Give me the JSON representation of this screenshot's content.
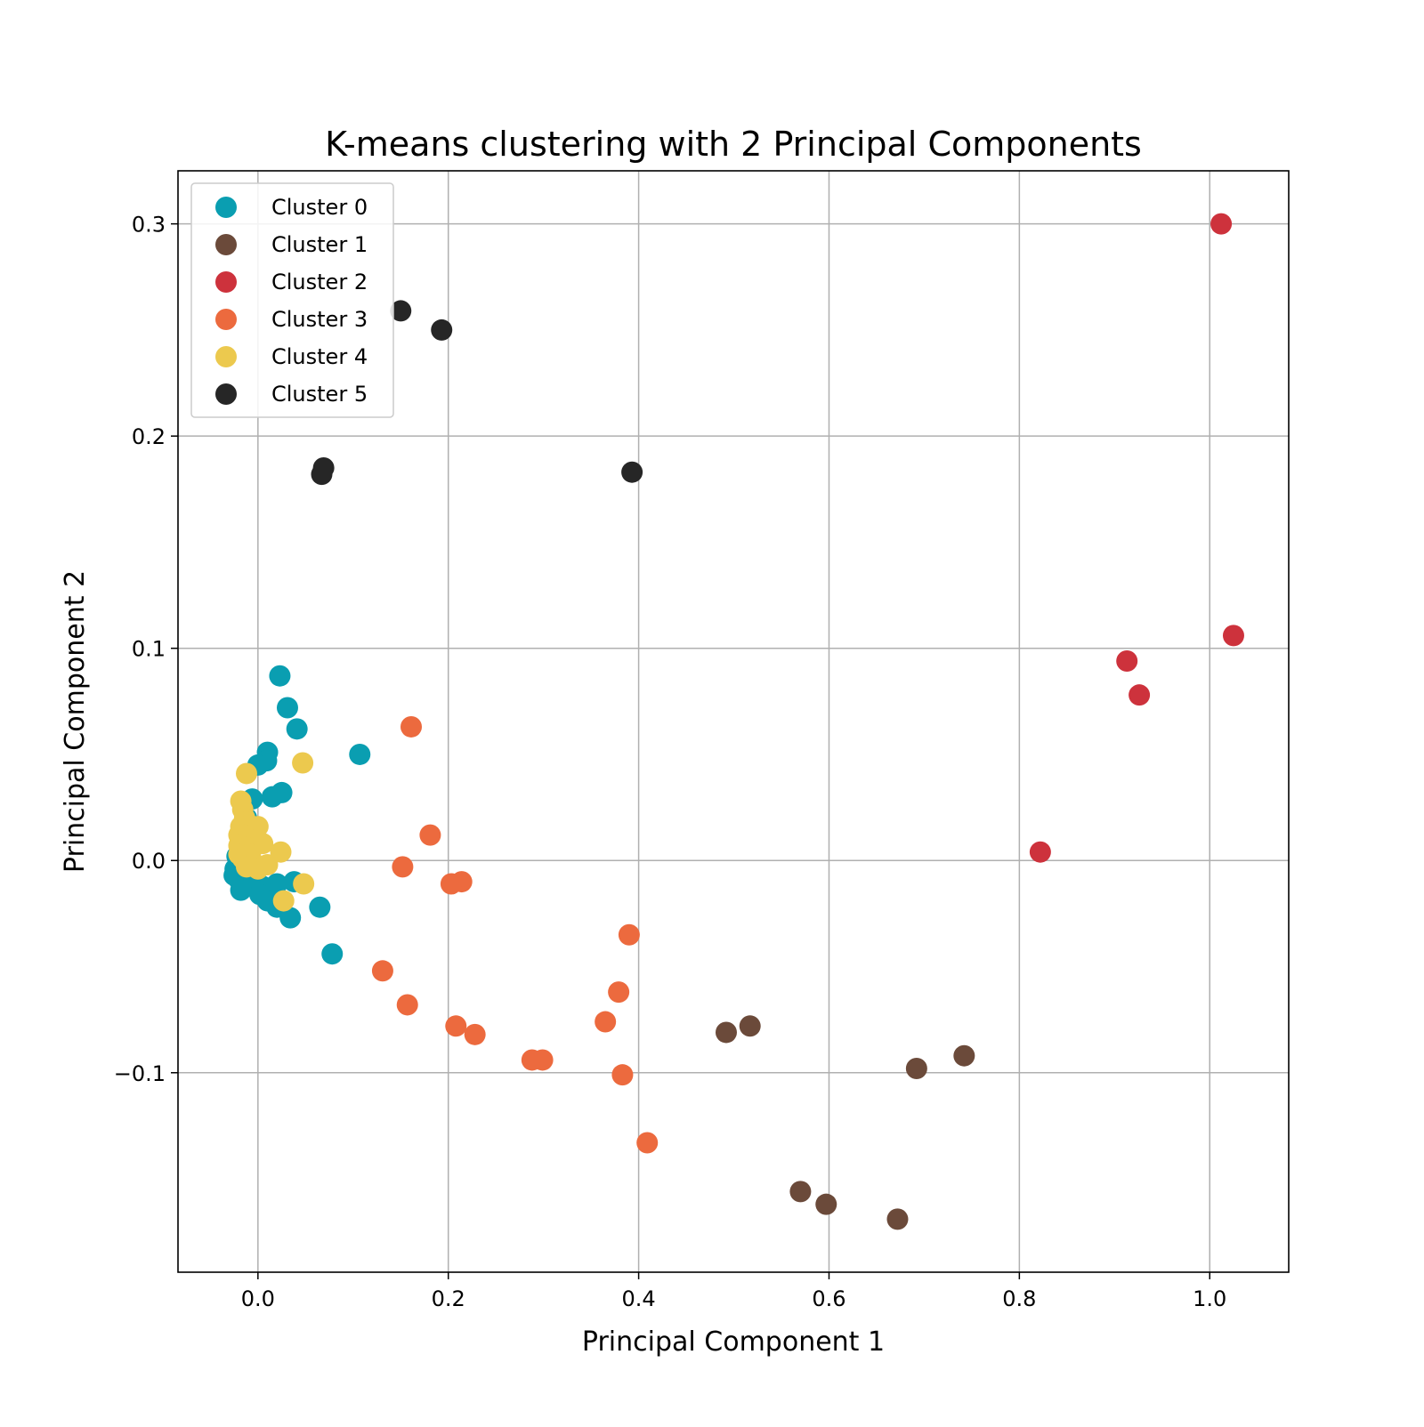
{
  "chart_data": {
    "type": "scatter",
    "title": "K-means clustering with 2 Principal Components",
    "xlabel": "Principal Component 1",
    "ylabel": "Principal Component 2",
    "xlim": [
      -0.084,
      1.083
    ],
    "ylim": [
      -0.194,
      0.325
    ],
    "xticks": [
      0.0,
      0.2,
      0.4,
      0.6,
      0.8,
      1.0
    ],
    "xtick_labels": [
      "0.0",
      "0.2",
      "0.4",
      "0.6",
      "0.8",
      "1.0"
    ],
    "yticks": [
      -0.1,
      0.0,
      0.1,
      0.2,
      0.3
    ],
    "ytick_labels": [
      "−0.1",
      "0.0",
      "0.1",
      "0.2",
      "0.3"
    ],
    "grid": true,
    "legend_position": "upper-left",
    "series": [
      {
        "name": "Cluster 0",
        "color": "#0a9eb1",
        "points": [
          [
            0.023,
            0.087
          ],
          [
            0.031,
            0.072
          ],
          [
            0.041,
            0.062
          ],
          [
            0.107,
            0.05
          ],
          [
            0.01,
            0.051
          ],
          [
            0.009,
            0.047
          ],
          [
            0.0,
            0.045
          ],
          [
            0.025,
            0.032
          ],
          [
            0.015,
            0.03
          ],
          [
            -0.006,
            0.029
          ],
          [
            -0.012,
            0.02
          ],
          [
            -0.018,
            0.01
          ],
          [
            -0.022,
            0.002
          ],
          [
            -0.024,
            -0.004
          ],
          [
            -0.025,
            -0.007
          ],
          [
            -0.02,
            -0.009
          ],
          [
            -0.016,
            -0.012
          ],
          [
            -0.01,
            -0.011
          ],
          [
            -0.004,
            -0.009
          ],
          [
            0.004,
            -0.012
          ],
          [
            0.012,
            -0.013
          ],
          [
            0.02,
            -0.011
          ],
          [
            0.038,
            -0.01
          ],
          [
            -0.018,
            -0.014
          ],
          [
            0.002,
            -0.016
          ],
          [
            0.01,
            -0.019
          ],
          [
            0.02,
            -0.022
          ],
          [
            0.034,
            -0.027
          ],
          [
            0.065,
            -0.022
          ],
          [
            0.078,
            -0.044
          ]
        ]
      },
      {
        "name": "Cluster 1",
        "color": "#6b4a3a",
        "points": [
          [
            0.517,
            -0.078
          ],
          [
            0.492,
            -0.081
          ],
          [
            0.742,
            -0.092
          ],
          [
            0.692,
            -0.098
          ],
          [
            0.57,
            -0.156
          ],
          [
            0.597,
            -0.162
          ],
          [
            0.672,
            -0.169
          ]
        ]
      },
      {
        "name": "Cluster 2",
        "color": "#cd323c",
        "points": [
          [
            1.012,
            0.3
          ],
          [
            1.025,
            0.106
          ],
          [
            0.913,
            0.094
          ],
          [
            0.926,
            0.078
          ],
          [
            0.822,
            0.004
          ]
        ]
      },
      {
        "name": "Cluster 3",
        "color": "#ec6a3e",
        "points": [
          [
            0.161,
            0.063
          ],
          [
            0.181,
            0.012
          ],
          [
            0.152,
            -0.003
          ],
          [
            0.214,
            -0.01
          ],
          [
            0.203,
            -0.011
          ],
          [
            0.39,
            -0.035
          ],
          [
            0.379,
            -0.062
          ],
          [
            0.131,
            -0.052
          ],
          [
            0.157,
            -0.068
          ],
          [
            0.365,
            -0.076
          ],
          [
            0.208,
            -0.078
          ],
          [
            0.228,
            -0.082
          ],
          [
            0.288,
            -0.094
          ],
          [
            0.299,
            -0.094
          ],
          [
            0.383,
            -0.101
          ],
          [
            0.409,
            -0.133
          ]
        ]
      },
      {
        "name": "Cluster 4",
        "color": "#ecc94e",
        "points": [
          [
            0.047,
            0.046
          ],
          [
            -0.012,
            0.041
          ],
          [
            -0.018,
            0.028
          ],
          [
            -0.016,
            0.024
          ],
          [
            -0.014,
            0.02
          ],
          [
            -0.012,
            0.018
          ],
          [
            -0.018,
            0.016
          ],
          [
            0.0,
            0.016
          ],
          [
            -0.02,
            0.012
          ],
          [
            -0.015,
            0.012
          ],
          [
            -0.01,
            0.01
          ],
          [
            0.005,
            0.008
          ],
          [
            -0.02,
            0.007
          ],
          [
            -0.012,
            0.006
          ],
          [
            -0.02,
            0.003
          ],
          [
            -0.008,
            0.003
          ],
          [
            0.024,
            0.004
          ],
          [
            -0.016,
            0.001
          ],
          [
            -0.005,
            -0.001
          ],
          [
            0.01,
            -0.002
          ],
          [
            -0.012,
            -0.003
          ],
          [
            0.0,
            -0.004
          ],
          [
            0.048,
            -0.011
          ],
          [
            0.027,
            -0.019
          ]
        ]
      },
      {
        "name": "Cluster 5",
        "color": "#262626",
        "points": [
          [
            0.15,
            0.259
          ],
          [
            0.193,
            0.25
          ],
          [
            0.069,
            0.185
          ],
          [
            0.067,
            0.182
          ],
          [
            0.393,
            0.183
          ]
        ]
      }
    ]
  }
}
